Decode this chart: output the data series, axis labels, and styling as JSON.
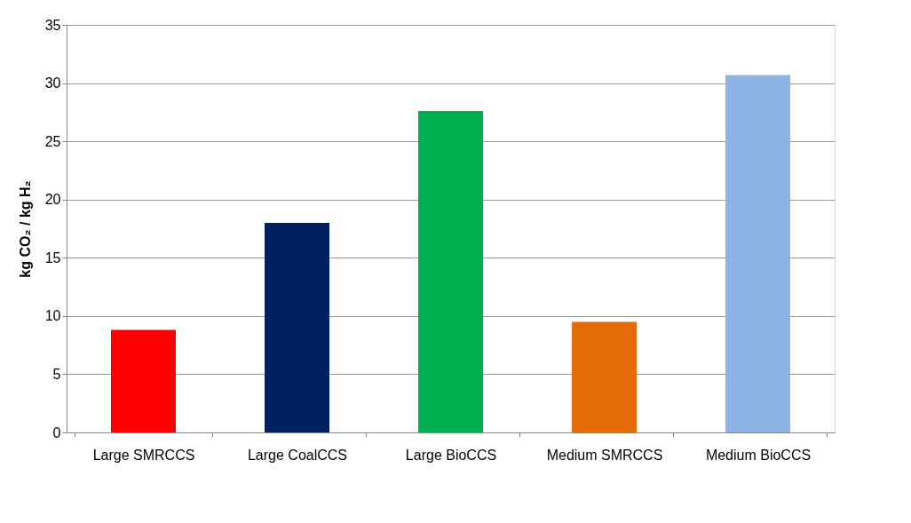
{
  "chart_data": {
    "type": "bar",
    "categories": [
      "Large SMRCCS",
      "Large CoalCCS",
      "Large BioCCS",
      "Medium  SMRCCS",
      "Medium  BioCCS"
    ],
    "values": [
      8.8,
      18.0,
      27.6,
      9.5,
      30.7
    ],
    "colors": [
      "#ff0000",
      "#002060",
      "#00b050",
      "#e36c09",
      "#8eb4e3"
    ],
    "ylabel": "kg CO₂ / kg H₂",
    "ylim": [
      0,
      35
    ],
    "yticks": [
      0,
      5,
      10,
      15,
      20,
      25,
      30,
      35
    ],
    "grid": "y",
    "legend": false
  }
}
